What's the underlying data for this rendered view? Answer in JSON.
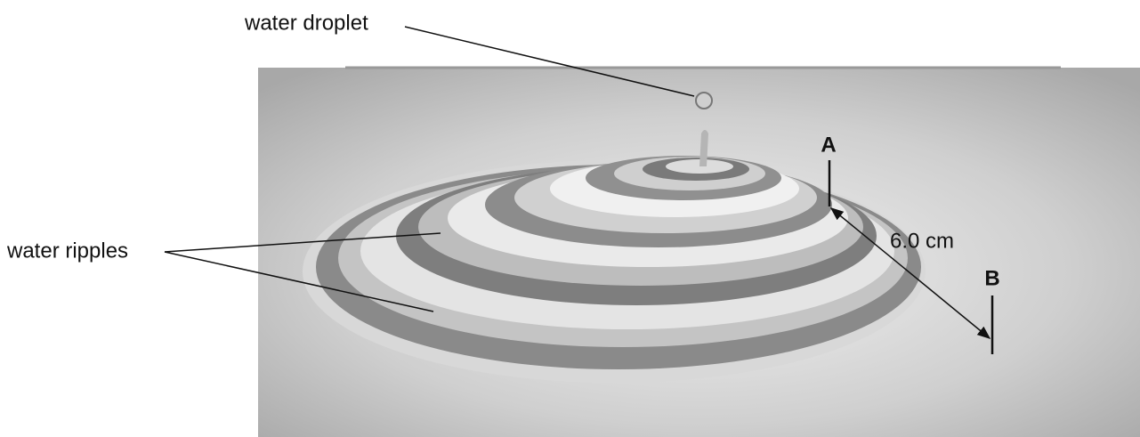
{
  "labels": {
    "droplet": "water droplet",
    "ripples": "water ripples",
    "point_a": "A",
    "point_b": "B",
    "distance": "6.0 cm"
  }
}
